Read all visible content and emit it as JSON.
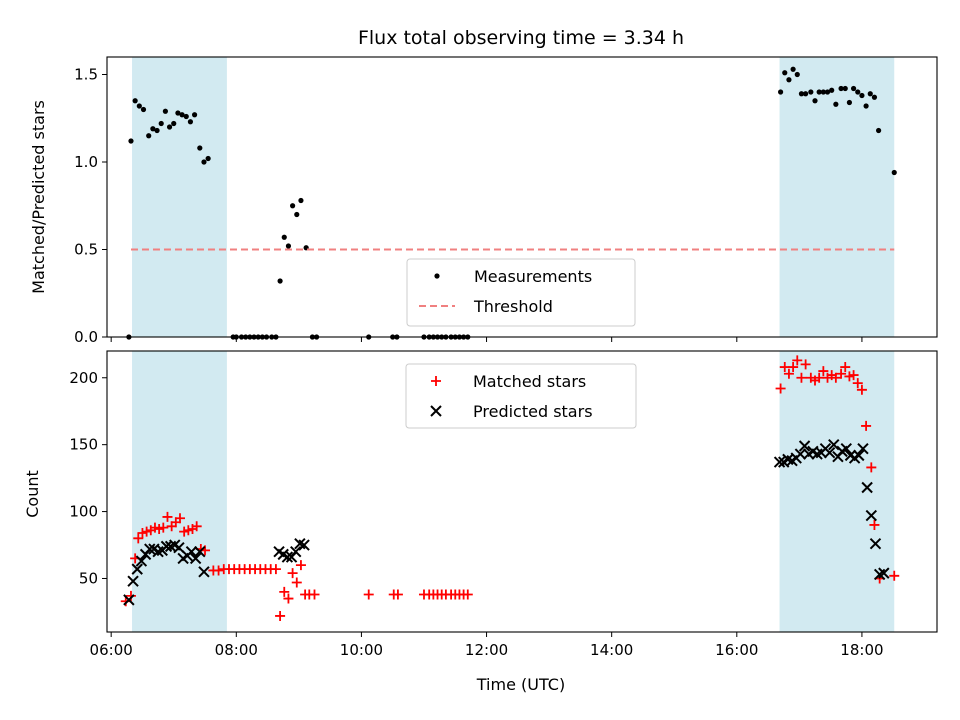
{
  "chart_data": {
    "title": "Flux total observing time = 3.34 h",
    "xlabel": "Time (UTC)",
    "x_ticks": [
      "06:00",
      "08:00",
      "10:00",
      "12:00",
      "14:00",
      "16:00",
      "18:00"
    ],
    "xlim": [
      "05:56",
      "19:12"
    ],
    "shaded_periods": [
      [
        "06:20",
        "07:51"
      ],
      [
        "16:41",
        "18:31"
      ]
    ],
    "shade_color": "#add8e6",
    "panels": [
      {
        "type": "scatter",
        "ylabel": "Matched/Predicted stars",
        "ylim": [
          0,
          1.6
        ],
        "y_ticks": [
          "0.0",
          "0.5",
          "1.0",
          "1.5"
        ],
        "legend_position": "lower-center",
        "series": [
          {
            "name": "Measurements",
            "color": "#000000",
            "marker": "dot",
            "points": [
              [
                "06:17",
                0.0
              ],
              [
                "06:19",
                1.12
              ],
              [
                "06:23",
                1.35
              ],
              [
                "06:27",
                1.32
              ],
              [
                "06:31",
                1.3
              ],
              [
                "06:36",
                1.15
              ],
              [
                "06:40",
                1.19
              ],
              [
                "06:44",
                1.18
              ],
              [
                "06:48",
                1.22
              ],
              [
                "06:52",
                1.29
              ],
              [
                "06:56",
                1.2
              ],
              [
                "07:00",
                1.22
              ],
              [
                "07:04",
                1.28
              ],
              [
                "07:08",
                1.27
              ],
              [
                "07:12",
                1.26
              ],
              [
                "07:16",
                1.23
              ],
              [
                "07:20",
                1.27
              ],
              [
                "07:25",
                1.08
              ],
              [
                "07:29",
                1.0
              ],
              [
                "07:33",
                1.02
              ],
              [
                "07:57",
                0.0
              ],
              [
                "08:00",
                0.0
              ],
              [
                "08:05",
                0.0
              ],
              [
                "08:09",
                0.0
              ],
              [
                "08:13",
                0.0
              ],
              [
                "08:17",
                0.0
              ],
              [
                "08:21",
                0.0
              ],
              [
                "08:25",
                0.0
              ],
              [
                "08:29",
                0.0
              ],
              [
                "08:34",
                0.0
              ],
              [
                "08:38",
                0.0
              ],
              [
                "08:42",
                0.32
              ],
              [
                "08:46",
                0.57
              ],
              [
                "08:50",
                0.52
              ],
              [
                "08:54",
                0.75
              ],
              [
                "08:58",
                0.7
              ],
              [
                "09:02",
                0.78
              ],
              [
                "09:07",
                0.51
              ],
              [
                "09:13",
                0.0
              ],
              [
                "09:17",
                0.0
              ],
              [
                "10:07",
                0.0
              ],
              [
                "10:30",
                0.0
              ],
              [
                "10:34",
                0.0
              ],
              [
                "11:00",
                0.0
              ],
              [
                "11:05",
                0.0
              ],
              [
                "11:09",
                0.0
              ],
              [
                "11:13",
                0.0
              ],
              [
                "11:17",
                0.0
              ],
              [
                "11:21",
                0.0
              ],
              [
                "11:26",
                0.0
              ],
              [
                "11:30",
                0.0
              ],
              [
                "11:34",
                0.0
              ],
              [
                "11:38",
                0.0
              ],
              [
                "11:42",
                0.0
              ],
              [
                "16:42",
                1.4
              ],
              [
                "16:46",
                1.51
              ],
              [
                "16:50",
                1.47
              ],
              [
                "16:54",
                1.53
              ],
              [
                "16:58",
                1.5
              ],
              [
                "17:02",
                1.39
              ],
              [
                "17:06",
                1.39
              ],
              [
                "17:11",
                1.4
              ],
              [
                "17:15",
                1.35
              ],
              [
                "17:19",
                1.4
              ],
              [
                "17:23",
                1.4
              ],
              [
                "17:27",
                1.4
              ],
              [
                "17:31",
                1.41
              ],
              [
                "17:35",
                1.33
              ],
              [
                "17:40",
                1.42
              ],
              [
                "17:44",
                1.42
              ],
              [
                "17:48",
                1.34
              ],
              [
                "17:52",
                1.42
              ],
              [
                "17:56",
                1.4
              ],
              [
                "18:00",
                1.38
              ],
              [
                "18:04",
                1.32
              ],
              [
                "18:08",
                1.39
              ],
              [
                "18:12",
                1.37
              ],
              [
                "18:16",
                1.18
              ],
              [
                "18:31",
                0.94
              ]
            ]
          },
          {
            "name": "Threshold",
            "color": "#f08080",
            "style": "dashed",
            "x_range": [
              "06:19",
              "18:31"
            ],
            "value": 0.5
          }
        ]
      },
      {
        "type": "scatter",
        "ylabel": "Count",
        "ylim": [
          10,
          220
        ],
        "y_ticks": [
          "50",
          "100",
          "150",
          "200"
        ],
        "legend_position": "top-center",
        "series": [
          {
            "name": "Matched stars",
            "color": "#ff0000",
            "marker": "plus",
            "points": [
              [
                "06:14",
                33
              ],
              [
                "06:19",
                37
              ],
              [
                "06:23",
                65
              ],
              [
                "06:26",
                80
              ],
              [
                "06:30",
                84
              ],
              [
                "06:34",
                85
              ],
              [
                "06:38",
                86
              ],
              [
                "06:42",
                88
              ],
              [
                "06:46",
                87
              ],
              [
                "06:50",
                88
              ],
              [
                "06:54",
                96
              ],
              [
                "06:58",
                89
              ],
              [
                "07:02",
                92
              ],
              [
                "07:06",
                95
              ],
              [
                "07:10",
                85
              ],
              [
                "07:14",
                86
              ],
              [
                "07:18",
                87
              ],
              [
                "07:22",
                89
              ],
              [
                "07:26",
                72
              ],
              [
                "07:30",
                71
              ],
              [
                "07:38",
                56
              ],
              [
                "07:43",
                56
              ],
              [
                "07:48",
                57
              ],
              [
                "07:53",
                57
              ],
              [
                "07:58",
                57
              ],
              [
                "08:03",
                57
              ],
              [
                "08:08",
                57
              ],
              [
                "08:13",
                57
              ],
              [
                "08:18",
                57
              ],
              [
                "08:23",
                57
              ],
              [
                "08:28",
                57
              ],
              [
                "08:33",
                57
              ],
              [
                "08:38",
                57
              ],
              [
                "08:42",
                22
              ],
              [
                "08:46",
                40
              ],
              [
                "08:50",
                35
              ],
              [
                "08:54",
                54
              ],
              [
                "08:58",
                47
              ],
              [
                "09:02",
                60
              ],
              [
                "09:06",
                38
              ],
              [
                "09:10",
                38
              ],
              [
                "09:15",
                38
              ],
              [
                "10:07",
                38
              ],
              [
                "10:31",
                38
              ],
              [
                "10:35",
                38
              ],
              [
                "11:00",
                38
              ],
              [
                "11:05",
                38
              ],
              [
                "11:09",
                38
              ],
              [
                "11:13",
                38
              ],
              [
                "11:17",
                38
              ],
              [
                "11:21",
                38
              ],
              [
                "11:26",
                38
              ],
              [
                "11:30",
                38
              ],
              [
                "11:34",
                38
              ],
              [
                "11:38",
                38
              ],
              [
                "11:42",
                38
              ],
              [
                "16:42",
                192
              ],
              [
                "16:46",
                208
              ],
              [
                "16:50",
                203
              ],
              [
                "16:54",
                208
              ],
              [
                "16:58",
                213
              ],
              [
                "17:02",
                200
              ],
              [
                "17:06",
                210
              ],
              [
                "17:11",
                200
              ],
              [
                "17:15",
                198
              ],
              [
                "17:19",
                200
              ],
              [
                "17:23",
                205
              ],
              [
                "17:27",
                200
              ],
              [
                "17:31",
                202
              ],
              [
                "17:35",
                200
              ],
              [
                "17:40",
                203
              ],
              [
                "17:44",
                208
              ],
              [
                "17:48",
                201
              ],
              [
                "17:52",
                202
              ],
              [
                "17:56",
                196
              ],
              [
                "18:00",
                191
              ],
              [
                "18:04",
                164
              ],
              [
                "18:09",
                133
              ],
              [
                "18:12",
                90
              ],
              [
                "18:17",
                50
              ],
              [
                "18:31",
                52
              ]
            ]
          },
          {
            "name": "Predicted stars",
            "color": "#000000",
            "marker": "x",
            "points": [
              [
                "06:17",
                34
              ],
              [
                "06:21",
                48
              ],
              [
                "06:25",
                57
              ],
              [
                "06:29",
                63
              ],
              [
                "06:33",
                68
              ],
              [
                "06:37",
                72
              ],
              [
                "06:41",
                72
              ],
              [
                "06:45",
                70
              ],
              [
                "06:49",
                71
              ],
              [
                "06:53",
                74
              ],
              [
                "06:57",
                74
              ],
              [
                "07:01",
                75
              ],
              [
                "07:05",
                73
              ],
              [
                "07:09",
                65
              ],
              [
                "07:13",
                67
              ],
              [
                "07:17",
                70
              ],
              [
                "07:21",
                65
              ],
              [
                "07:25",
                70
              ],
              [
                "07:29",
                55
              ],
              [
                "08:41",
                70
              ],
              [
                "08:45",
                68
              ],
              [
                "08:49",
                66
              ],
              [
                "08:53",
                66
              ],
              [
                "08:57",
                70
              ],
              [
                "09:01",
                76
              ],
              [
                "09:05",
                75
              ],
              [
                "16:41",
                137
              ],
              [
                "16:45",
                137
              ],
              [
                "16:49",
                139
              ],
              [
                "16:53",
                138
              ],
              [
                "16:57",
                140
              ],
              [
                "17:01",
                143
              ],
              [
                "17:05",
                149
              ],
              [
                "17:09",
                143
              ],
              [
                "17:13",
                145
              ],
              [
                "17:17",
                143
              ],
              [
                "17:21",
                144
              ],
              [
                "17:25",
                147
              ],
              [
                "17:29",
                144
              ],
              [
                "17:33",
                150
              ],
              [
                "17:37",
                141
              ],
              [
                "17:41",
                145
              ],
              [
                "17:45",
                147
              ],
              [
                "17:49",
                142
              ],
              [
                "17:53",
                140
              ],
              [
                "17:57",
                142
              ],
              [
                "18:01",
                147
              ],
              [
                "18:05",
                118
              ],
              [
                "18:09",
                97
              ],
              [
                "18:13",
                76
              ],
              [
                "18:17",
                53
              ],
              [
                "18:21",
                54
              ]
            ]
          }
        ]
      }
    ]
  }
}
